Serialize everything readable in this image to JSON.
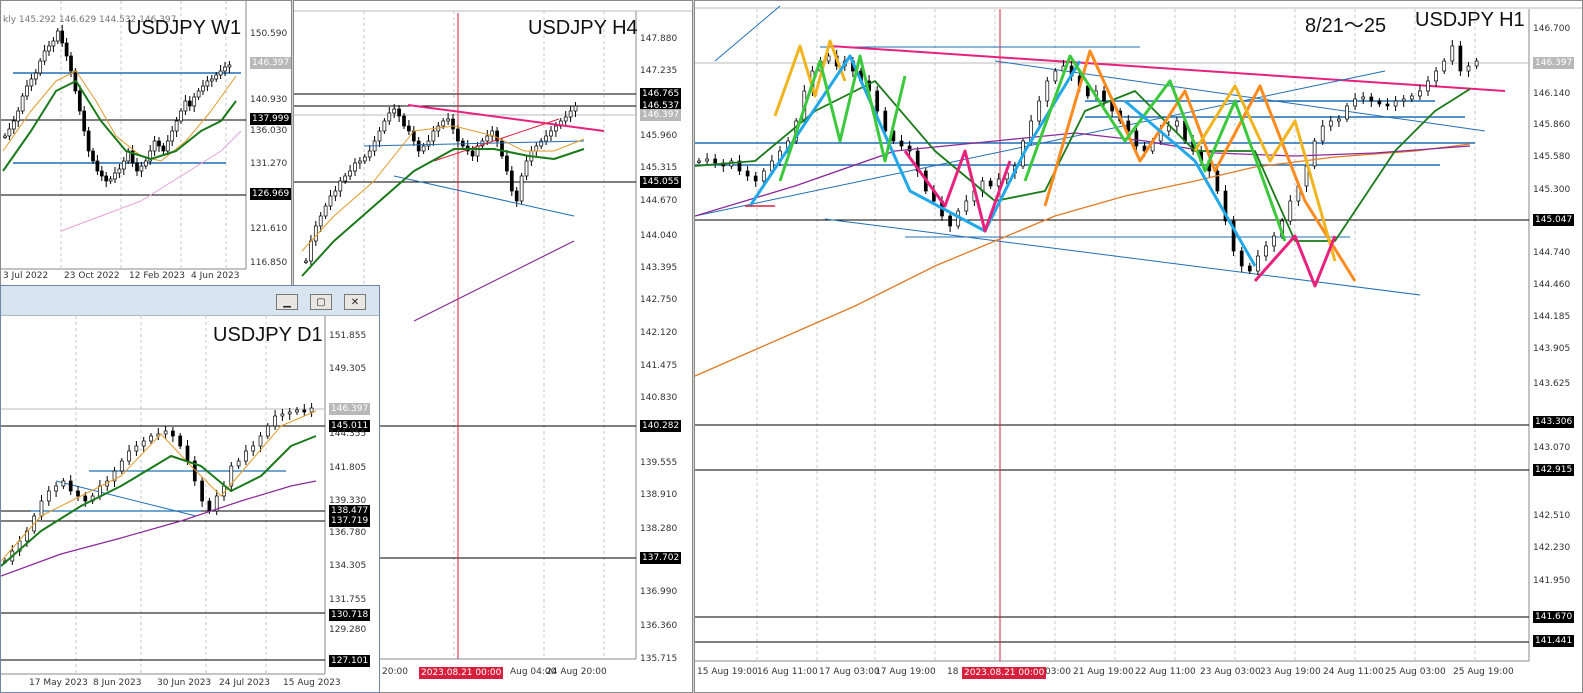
{
  "w1": {
    "title": "USDJPY W1",
    "header": "kly  145.292 146.629 144.532 146.397",
    "prices": [
      "150.590",
      "146.397",
      "140.930",
      "137.999",
      "136.030",
      "131.270",
      "126.969",
      "121.610",
      "116.850"
    ],
    "dates": [
      "3 Jul 2022",
      "23 Oct 2022",
      "12 Feb 2023",
      "4 Jun 2023"
    ]
  },
  "h4": {
    "title": "USDJPY H4",
    "prices": [
      "147.880",
      "147.235",
      "146.765",
      "146.537",
      "146.397",
      "145.960",
      "145.315",
      "145.055",
      "144.670",
      "144.040",
      "143.395",
      "142.750",
      "142.120",
      "141.475",
      "140.830",
      "140.282",
      "139.555",
      "138.910",
      "138.280",
      "137.702",
      "136.990",
      "136.360",
      "135.715"
    ],
    "dates": [
      "20:00",
      "2023.08.21 00:00",
      "Aug 04:00",
      "24 Aug 20:00"
    ]
  },
  "d1": {
    "title": "USDJPY D1",
    "window_buttons": [
      "▁",
      "▢",
      "✕"
    ],
    "prices": [
      "151.855",
      "149.305",
      "146.397",
      "145.011",
      "144.355",
      "141.805",
      "139.330",
      "138.477",
      "137.719",
      "136.780",
      "134.305",
      "131.755",
      "130.718",
      "129.280",
      "127.101"
    ],
    "dates": [
      "17 May 2023",
      "8 Jun 2023",
      "30 Jun 2023",
      "24 Jul 2023",
      "15 Aug 2023"
    ]
  },
  "h1": {
    "title": "USDJPY H1",
    "period_note": "8/21～25",
    "prices": [
      "146.700",
      "146.397",
      "146.140",
      "145.860",
      "145.580",
      "145.300",
      "145.047",
      "144.740",
      "144.460",
      "144.185",
      "143.905",
      "143.625",
      "143.306",
      "143.070",
      "142.915",
      "142.510",
      "142.230",
      "141.950",
      "141.670",
      "141.441"
    ],
    "dates": [
      "15 Aug 19:00",
      "16 Aug 11:00",
      "17 Aug 03:00",
      "17 Aug 19:00",
      "18",
      "2023.08.21 00:00",
      "03:00",
      "21 Aug 19:00",
      "22 Aug 11:00",
      "23 Aug 03:00",
      "23 Aug 19:00",
      "24 Aug 11:00",
      "25 Aug 03:00",
      "25 Aug 19:00"
    ]
  },
  "colors": {
    "accent_pink": "#e8217d",
    "level_blue": "#1f6fb5",
    "marker_red": "#d8203c",
    "ma_green": "#1a7a1a",
    "ma_purple": "#8a2a9a",
    "ma_orange": "#e07b26"
  }
}
